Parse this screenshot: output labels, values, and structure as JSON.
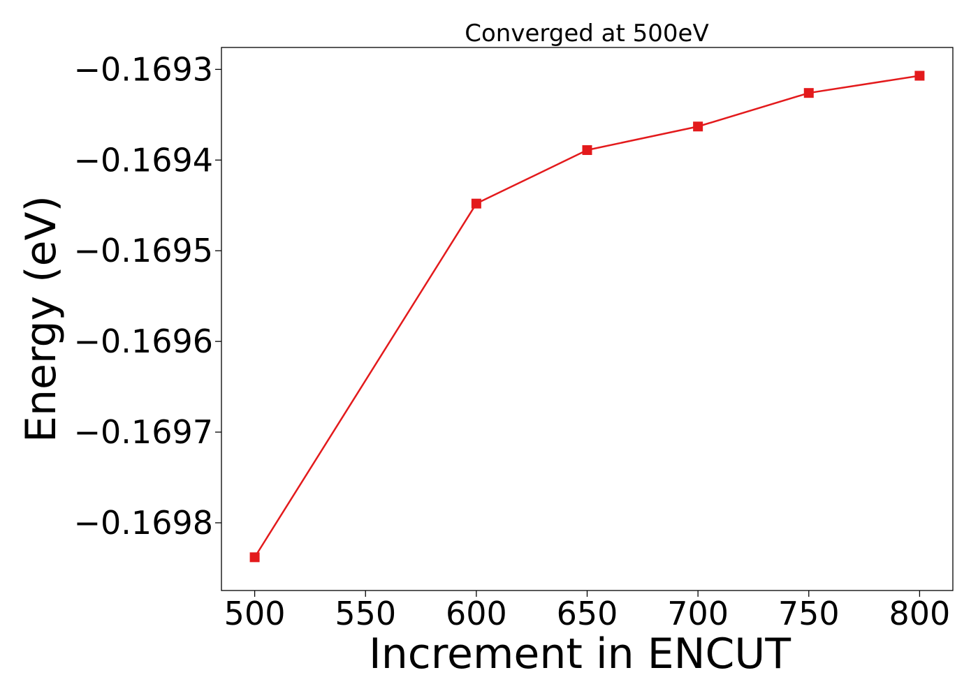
{
  "chart_data": {
    "type": "line",
    "title": "Converged at 500eV",
    "xlabel": "Increment in ENCUT",
    "ylabel": "Energy (eV)",
    "x": [
      500,
      600,
      650,
      700,
      750,
      800
    ],
    "series": [
      {
        "values": [
          -0.169838,
          -0.169448,
          -0.169389,
          -0.169363,
          -0.169326,
          -0.169307
        ],
        "color": "#e31a1c",
        "marker": "square"
      }
    ],
    "xlim": [
      485,
      815
    ],
    "ylim": [
      -0.16987467,
      -0.16927583
    ],
    "xticks": [
      500,
      550,
      600,
      650,
      700,
      750,
      800
    ],
    "xtick_labels": [
      "500",
      "550",
      "600",
      "650",
      "700",
      "750",
      "800"
    ],
    "yticks": [
      -0.1693,
      -0.1694,
      -0.1695,
      -0.1696,
      -0.1697,
      -0.1698
    ],
    "ytick_labels": [
      "−0.1693",
      "−0.1694",
      "−0.1695",
      "−0.1696",
      "−0.1697",
      "−0.1698"
    ],
    "grid": false,
    "legend": "none"
  }
}
